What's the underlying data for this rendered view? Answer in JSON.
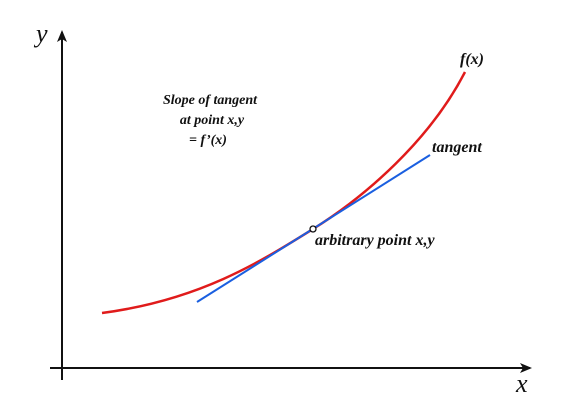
{
  "axes": {
    "y_label": "y",
    "x_label": "x"
  },
  "curve_label": "f(x)",
  "tangent_label": "tangent",
  "point_label": "arbitrary point x,y",
  "annotation": {
    "lines": [
      "Slope of tangent",
      "at point x,y",
      "= f’(x)"
    ]
  }
}
